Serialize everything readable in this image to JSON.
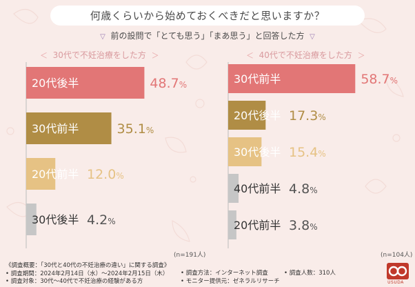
{
  "title": "何歳くらいから始めておくべきだと思いますか？",
  "subtitle": {
    "left_marker": "▽",
    "text": "前の設問で「とても思う」「まあ思う」と回答した方",
    "right_marker": "▽"
  },
  "chart_data": [
    {
      "type": "bar",
      "orientation": "horizontal",
      "title": "30代で不妊治療をした方",
      "title_marker_left": "＜",
      "title_marker_right": "＞",
      "categories": [
        "20代後半",
        "30代前半",
        "20代前半",
        "30代後半"
      ],
      "values": [
        48.7,
        35.1,
        12.0,
        4.2
      ],
      "value_labels": [
        {
          "number": "48.7",
          "unit": "%"
        },
        {
          "number": "35.1",
          "unit": "%"
        },
        {
          "number": "12.0",
          "unit": "%"
        },
        {
          "number": "4.2",
          "unit": "%"
        }
      ],
      "colors": [
        "#e27676",
        "#b08d45",
        "#e6c284",
        "#c6c6c6"
      ],
      "xlim": [
        0,
        100
      ],
      "note": "(n=191人)"
    },
    {
      "type": "bar",
      "orientation": "horizontal",
      "title": "40代で不妊治療をした方",
      "title_marker_left": "＜",
      "title_marker_right": "＞",
      "categories": [
        "30代前半",
        "20代後半",
        "30代後半",
        "40代前半",
        "20代前半"
      ],
      "values": [
        58.7,
        17.3,
        15.4,
        4.8,
        3.8
      ],
      "value_labels": [
        {
          "number": "58.7",
          "unit": "%"
        },
        {
          "number": "17.3",
          "unit": "%"
        },
        {
          "number": "15.4",
          "unit": "%"
        },
        {
          "number": "4.8",
          "unit": "%"
        },
        {
          "number": "3.8",
          "unit": "%"
        }
      ],
      "colors": [
        "#e27676",
        "#b08d45",
        "#e6c284",
        "#c6c6c6",
        "#c6c6c6"
      ],
      "xlim": [
        0,
        100
      ],
      "note": "(n=104人)"
    }
  ],
  "footer": {
    "col1": [
      "《調査概要：「30代と40代の不妊治療の違い」に関する調査》",
      "• 調査期間：2024年2月14日（水）～2024年2月15日（木）",
      "• 調査対象：30代～40代で不妊治療の経験がある方"
    ],
    "col2": [
      "• 調査方法：インターネット調査",
      "• モニター提供元：ゼネラルリサーチ"
    ],
    "col3": [
      "• 調査人数：310人"
    ],
    "logo_text": "USUDA"
  }
}
